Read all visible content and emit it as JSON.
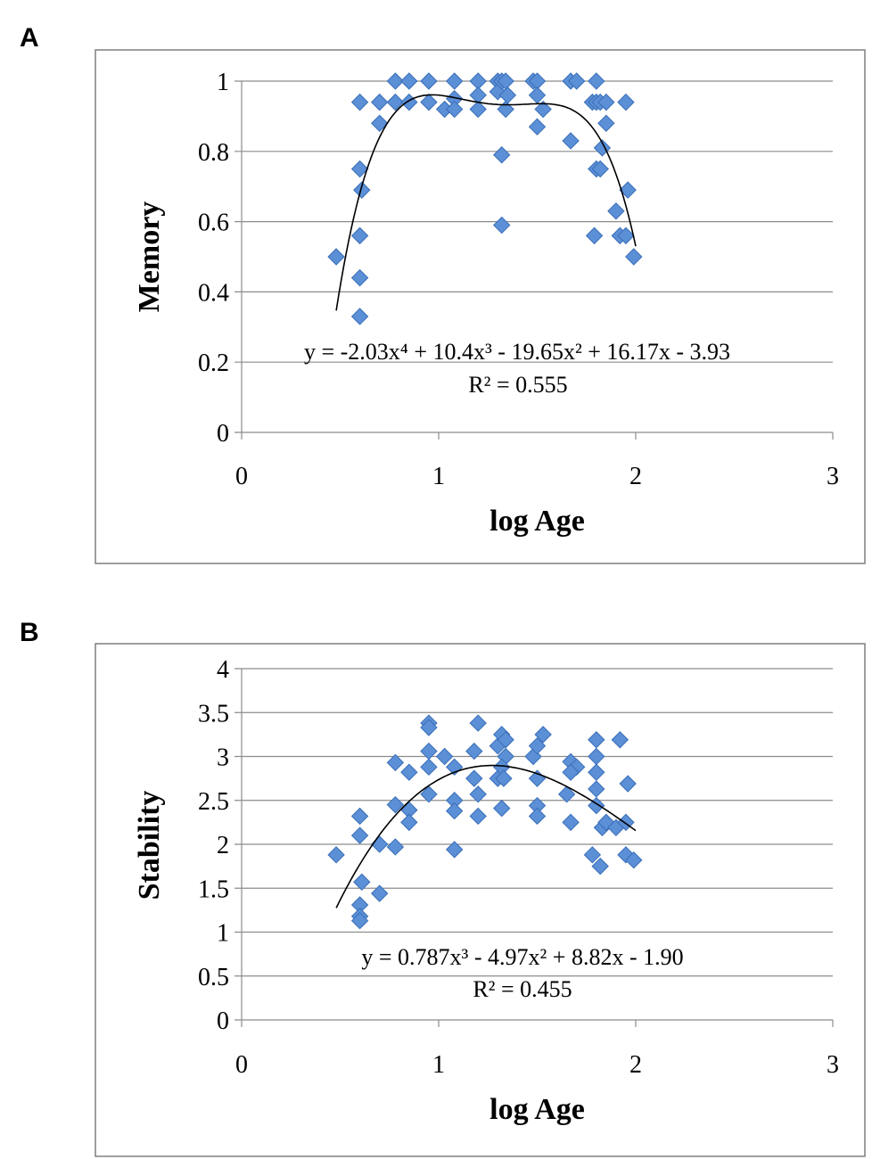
{
  "panels": {
    "a_label": "A",
    "b_label": "B"
  },
  "colors": {
    "marker": "#5b8fd6",
    "marker_edge": "#3a6fb8",
    "trend": "#000000"
  },
  "chart_data": [
    {
      "type": "scatter",
      "id": "A",
      "xlabel": "log Age",
      "ylabel": "Memory",
      "xlim": [
        0,
        3
      ],
      "ylim": [
        0,
        1
      ],
      "xticks": [
        0,
        1,
        2,
        3
      ],
      "yticks": [
        0,
        0.2,
        0.4,
        0.6,
        0.8,
        1
      ],
      "ytick_labels": [
        "0",
        "0.2",
        "0.4",
        "0.6",
        "0.8",
        "1"
      ],
      "grid": true,
      "equation": "y = -2.03x⁴ + 10.4x³ - 19.65x² + 16.17x - 3.93",
      "r2": "R² = 0.555",
      "trend": {
        "kind": "poly",
        "coef": [
          -3.93,
          16.17,
          -19.65,
          10.4,
          -2.03
        ],
        "xrange": [
          0.48,
          2.0
        ]
      },
      "points": [
        [
          0.48,
          0.5
        ],
        [
          0.6,
          0.94
        ],
        [
          0.6,
          0.75
        ],
        [
          0.61,
          0.69
        ],
        [
          0.6,
          0.56
        ],
        [
          0.6,
          0.44
        ],
        [
          0.6,
          0.33
        ],
        [
          0.7,
          0.94
        ],
        [
          0.7,
          0.88
        ],
        [
          0.78,
          1.0
        ],
        [
          0.78,
          0.94
        ],
        [
          0.85,
          1.0
        ],
        [
          0.85,
          0.94
        ],
        [
          0.95,
          1.0
        ],
        [
          0.95,
          0.94
        ],
        [
          1.03,
          0.92
        ],
        [
          1.08,
          1.0
        ],
        [
          1.08,
          0.95
        ],
        [
          1.08,
          0.92
        ],
        [
          1.2,
          1.0
        ],
        [
          1.2,
          0.96
        ],
        [
          1.2,
          0.92
        ],
        [
          1.3,
          1.0
        ],
        [
          1.3,
          0.97
        ],
        [
          1.32,
          1.0
        ],
        [
          1.34,
          1.0
        ],
        [
          1.35,
          0.96
        ],
        [
          1.34,
          0.92
        ],
        [
          1.32,
          0.79
        ],
        [
          1.32,
          0.59
        ],
        [
          1.48,
          1.0
        ],
        [
          1.5,
          1.0
        ],
        [
          1.5,
          0.96
        ],
        [
          1.53,
          0.92
        ],
        [
          1.5,
          0.87
        ],
        [
          1.67,
          1.0
        ],
        [
          1.7,
          1.0
        ],
        [
          1.67,
          0.83
        ],
        [
          1.78,
          0.94
        ],
        [
          1.8,
          1.0
        ],
        [
          1.8,
          0.94
        ],
        [
          1.82,
          0.94
        ],
        [
          1.85,
          0.94
        ],
        [
          1.85,
          0.88
        ],
        [
          1.83,
          0.81
        ],
        [
          1.8,
          0.75
        ],
        [
          1.82,
          0.75
        ],
        [
          1.79,
          0.56
        ],
        [
          1.9,
          0.63
        ],
        [
          1.92,
          0.56
        ],
        [
          1.95,
          0.56
        ],
        [
          1.96,
          0.69
        ],
        [
          1.95,
          0.94
        ],
        [
          1.99,
          0.5
        ]
      ]
    },
    {
      "type": "scatter",
      "id": "B",
      "xlabel": "log Age",
      "ylabel": "Stability",
      "xlim": [
        0,
        3
      ],
      "ylim": [
        0,
        4
      ],
      "xticks": [
        0,
        1,
        2,
        3
      ],
      "yticks": [
        0,
        0.5,
        1,
        1.5,
        2,
        2.5,
        3,
        3.5,
        4
      ],
      "ytick_labels": [
        "0",
        "0.5",
        "1",
        "1.5",
        "2",
        "2.5",
        "3",
        "3.5",
        "4"
      ],
      "grid": true,
      "equation": "y = 0.787x³ - 4.97x² + 8.82x - 1.90",
      "r2": "R² = 0.455",
      "trend": {
        "kind": "poly",
        "coef": [
          -1.9,
          8.82,
          -4.97,
          0.787
        ],
        "xrange": [
          0.48,
          2.0
        ]
      },
      "points": [
        [
          0.48,
          1.88
        ],
        [
          0.6,
          2.32
        ],
        [
          0.6,
          2.1
        ],
        [
          0.61,
          1.57
        ],
        [
          0.6,
          1.31
        ],
        [
          0.6,
          1.18
        ],
        [
          0.6,
          1.13
        ],
        [
          0.7,
          2.0
        ],
        [
          0.7,
          1.44
        ],
        [
          0.78,
          2.93
        ],
        [
          0.78,
          2.45
        ],
        [
          0.78,
          1.97
        ],
        [
          0.85,
          2.82
        ],
        [
          0.85,
          2.39
        ],
        [
          0.85,
          2.25
        ],
        [
          0.95,
          3.38
        ],
        [
          0.95,
          3.33
        ],
        [
          0.95,
          3.06
        ],
        [
          0.95,
          2.88
        ],
        [
          0.95,
          2.57
        ],
        [
          1.03,
          3.0
        ],
        [
          1.08,
          2.88
        ],
        [
          1.08,
          2.5
        ],
        [
          1.08,
          2.38
        ],
        [
          1.08,
          1.94
        ],
        [
          1.2,
          3.38
        ],
        [
          1.18,
          3.06
        ],
        [
          1.18,
          2.75
        ],
        [
          1.2,
          2.57
        ],
        [
          1.2,
          2.32
        ],
        [
          1.3,
          3.12
        ],
        [
          1.3,
          2.75
        ],
        [
          1.32,
          3.25
        ],
        [
          1.34,
          3.19
        ],
        [
          1.34,
          3.0
        ],
        [
          1.32,
          2.88
        ],
        [
          1.33,
          2.75
        ],
        [
          1.32,
          2.41
        ],
        [
          1.48,
          3.0
        ],
        [
          1.5,
          3.12
        ],
        [
          1.53,
          3.25
        ],
        [
          1.5,
          2.75
        ],
        [
          1.5,
          2.44
        ],
        [
          1.5,
          2.32
        ],
        [
          1.67,
          2.94
        ],
        [
          1.7,
          2.88
        ],
        [
          1.67,
          2.82
        ],
        [
          1.65,
          2.57
        ],
        [
          1.67,
          2.25
        ],
        [
          1.8,
          3.19
        ],
        [
          1.8,
          3.0
        ],
        [
          1.8,
          2.82
        ],
        [
          1.8,
          2.63
        ],
        [
          1.8,
          2.44
        ],
        [
          1.78,
          1.88
        ],
        [
          1.82,
          1.75
        ],
        [
          1.83,
          2.19
        ],
        [
          1.85,
          2.25
        ],
        [
          1.9,
          2.19
        ],
        [
          1.92,
          3.19
        ],
        [
          1.96,
          2.69
        ],
        [
          1.95,
          2.25
        ],
        [
          1.95,
          1.88
        ],
        [
          1.99,
          1.82
        ]
      ]
    }
  ]
}
